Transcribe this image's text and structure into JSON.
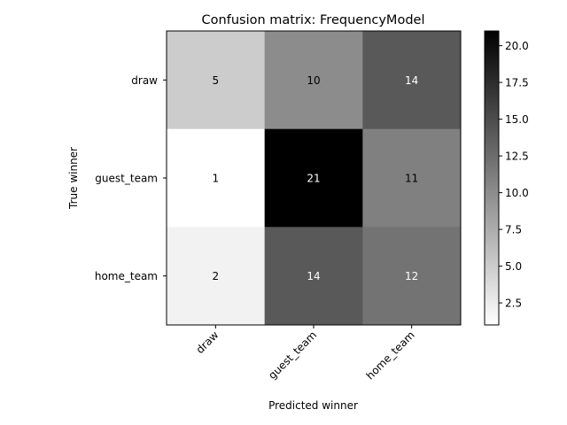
{
  "chart_data": {
    "type": "heatmap",
    "title": "Confusion matrix: FrequencyModel",
    "xlabel": "Predicted winner",
    "ylabel": "True winner",
    "x_categories": [
      "draw",
      "guest_team",
      "home_team"
    ],
    "y_categories": [
      "draw",
      "guest_team",
      "home_team"
    ],
    "values": [
      [
        5,
        10,
        14
      ],
      [
        1,
        21,
        11
      ],
      [
        2,
        14,
        12
      ]
    ],
    "colormap": "greys",
    "color_range": [
      1,
      21
    ],
    "colorbar_ticks": [
      "2.5",
      "5.0",
      "7.5",
      "10.0",
      "12.5",
      "15.0",
      "17.5",
      "20.0"
    ],
    "colorbar_tick_values": [
      2.5,
      5.0,
      7.5,
      10.0,
      12.5,
      15.0,
      17.5,
      20.0
    ],
    "cell_label_colors": {
      "light": "#ffffff",
      "dark": "#000000"
    }
  }
}
